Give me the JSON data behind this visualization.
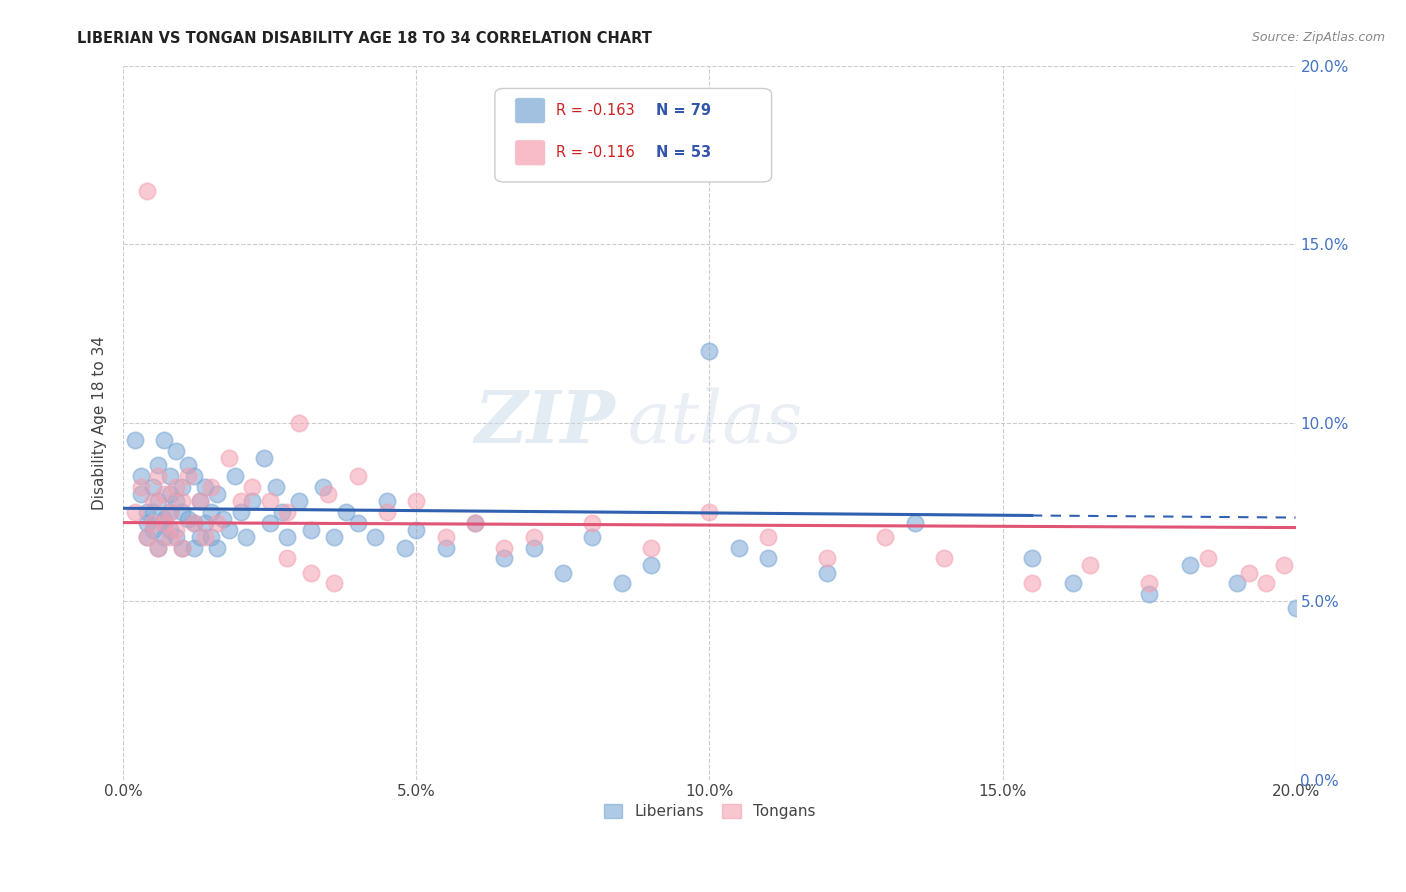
{
  "title": "LIBERIAN VS TONGAN DISABILITY AGE 18 TO 34 CORRELATION CHART",
  "source": "Source: ZipAtlas.com",
  "ylabel": "Disability Age 18 to 34",
  "xlim": [
    0.0,
    0.2
  ],
  "ylim": [
    0.0,
    0.2
  ],
  "xticks": [
    0.0,
    0.05,
    0.1,
    0.15,
    0.2
  ],
  "yticks": [
    0.0,
    0.05,
    0.1,
    0.15,
    0.2
  ],
  "liberian_color": "#7BA7D4",
  "tongan_color": "#F4A0B0",
  "trend_liberian_color": "#3060B0",
  "trend_tongan_color": "#E05575",
  "trend_lib_solid_end": 0.155,
  "trend_lib_dash_start": 0.155,
  "legend_R1": "R = -0.163",
  "legend_N1": "N = 79",
  "legend_R2": "R = -0.116",
  "legend_N2": "N = 53",
  "legend_label1": "Liberians",
  "legend_label2": "Tongans",
  "watermark_zip": "ZIP",
  "watermark_atlas": "atlas",
  "lib_intercept": 0.076,
  "lib_slope": -0.013,
  "ton_intercept": 0.072,
  "ton_slope": -0.007,
  "liberian_x": [
    0.002,
    0.003,
    0.003,
    0.004,
    0.004,
    0.004,
    0.005,
    0.005,
    0.005,
    0.006,
    0.006,
    0.006,
    0.007,
    0.007,
    0.007,
    0.007,
    0.008,
    0.008,
    0.008,
    0.008,
    0.009,
    0.009,
    0.009,
    0.01,
    0.01,
    0.01,
    0.011,
    0.011,
    0.012,
    0.012,
    0.012,
    0.013,
    0.013,
    0.014,
    0.014,
    0.015,
    0.015,
    0.016,
    0.016,
    0.017,
    0.018,
    0.019,
    0.02,
    0.021,
    0.022,
    0.024,
    0.025,
    0.026,
    0.027,
    0.028,
    0.03,
    0.032,
    0.034,
    0.036,
    0.038,
    0.04,
    0.043,
    0.045,
    0.048,
    0.05,
    0.055,
    0.06,
    0.065,
    0.07,
    0.075,
    0.08,
    0.085,
    0.09,
    0.1,
    0.105,
    0.11,
    0.12,
    0.135,
    0.155,
    0.162,
    0.175,
    0.182,
    0.19,
    0.2
  ],
  "liberian_y": [
    0.095,
    0.08,
    0.085,
    0.072,
    0.075,
    0.068,
    0.075,
    0.082,
    0.07,
    0.078,
    0.065,
    0.088,
    0.073,
    0.068,
    0.095,
    0.072,
    0.08,
    0.075,
    0.07,
    0.085,
    0.092,
    0.068,
    0.078,
    0.075,
    0.082,
    0.065,
    0.088,
    0.073,
    0.085,
    0.065,
    0.072,
    0.078,
    0.068,
    0.082,
    0.072,
    0.075,
    0.068,
    0.08,
    0.065,
    0.073,
    0.07,
    0.085,
    0.075,
    0.068,
    0.078,
    0.09,
    0.072,
    0.082,
    0.075,
    0.068,
    0.078,
    0.07,
    0.082,
    0.068,
    0.075,
    0.072,
    0.068,
    0.078,
    0.065,
    0.07,
    0.065,
    0.072,
    0.062,
    0.065,
    0.058,
    0.068,
    0.055,
    0.06,
    0.12,
    0.065,
    0.062,
    0.058,
    0.072,
    0.062,
    0.055,
    0.052,
    0.06,
    0.055,
    0.048
  ],
  "tongan_x": [
    0.002,
    0.003,
    0.004,
    0.004,
    0.005,
    0.005,
    0.006,
    0.006,
    0.007,
    0.007,
    0.008,
    0.008,
    0.009,
    0.009,
    0.01,
    0.01,
    0.011,
    0.012,
    0.013,
    0.014,
    0.015,
    0.016,
    0.018,
    0.02,
    0.022,
    0.025,
    0.028,
    0.03,
    0.035,
    0.04,
    0.045,
    0.05,
    0.055,
    0.06,
    0.065,
    0.07,
    0.08,
    0.09,
    0.1,
    0.11,
    0.12,
    0.13,
    0.14,
    0.155,
    0.165,
    0.175,
    0.185,
    0.192,
    0.195,
    0.198,
    0.028,
    0.032,
    0.036
  ],
  "tongan_y": [
    0.075,
    0.082,
    0.068,
    0.165,
    0.072,
    0.078,
    0.085,
    0.065,
    0.08,
    0.072,
    0.075,
    0.068,
    0.082,
    0.07,
    0.078,
    0.065,
    0.085,
    0.072,
    0.078,
    0.068,
    0.082,
    0.072,
    0.09,
    0.078,
    0.082,
    0.078,
    0.075,
    0.1,
    0.08,
    0.085,
    0.075,
    0.078,
    0.068,
    0.072,
    0.065,
    0.068,
    0.072,
    0.065,
    0.075,
    0.068,
    0.062,
    0.068,
    0.062,
    0.055,
    0.06,
    0.055,
    0.062,
    0.058,
    0.055,
    0.06,
    0.062,
    0.058,
    0.055
  ]
}
